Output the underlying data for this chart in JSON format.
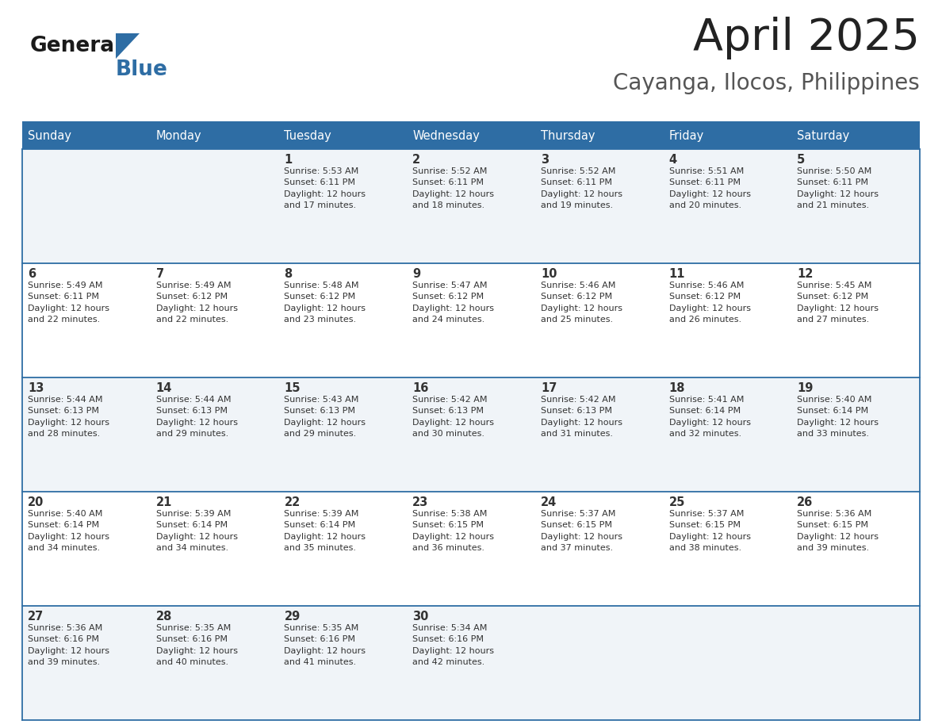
{
  "title": "April 2025",
  "subtitle": "Cayanga, Ilocos, Philippines",
  "days_of_week": [
    "Sunday",
    "Monday",
    "Tuesday",
    "Wednesday",
    "Thursday",
    "Friday",
    "Saturday"
  ],
  "header_bg": "#2E6DA4",
  "header_text": "#FFFFFF",
  "cell_bg_odd": "#F0F4F8",
  "cell_bg_even": "#FFFFFF",
  "divider_color": "#2E6DA4",
  "text_color": "#333333",
  "title_color": "#222222",
  "subtitle_color": "#555555",
  "logo_color_general": "#1a1a1a",
  "logo_color_blue": "#2E6DA4",
  "calendar": [
    [
      {
        "day": "",
        "info": ""
      },
      {
        "day": "",
        "info": ""
      },
      {
        "day": "1",
        "info": "Sunrise: 5:53 AM\nSunset: 6:11 PM\nDaylight: 12 hours\nand 17 minutes."
      },
      {
        "day": "2",
        "info": "Sunrise: 5:52 AM\nSunset: 6:11 PM\nDaylight: 12 hours\nand 18 minutes."
      },
      {
        "day": "3",
        "info": "Sunrise: 5:52 AM\nSunset: 6:11 PM\nDaylight: 12 hours\nand 19 minutes."
      },
      {
        "day": "4",
        "info": "Sunrise: 5:51 AM\nSunset: 6:11 PM\nDaylight: 12 hours\nand 20 minutes."
      },
      {
        "day": "5",
        "info": "Sunrise: 5:50 AM\nSunset: 6:11 PM\nDaylight: 12 hours\nand 21 minutes."
      }
    ],
    [
      {
        "day": "6",
        "info": "Sunrise: 5:49 AM\nSunset: 6:11 PM\nDaylight: 12 hours\nand 22 minutes."
      },
      {
        "day": "7",
        "info": "Sunrise: 5:49 AM\nSunset: 6:12 PM\nDaylight: 12 hours\nand 22 minutes."
      },
      {
        "day": "8",
        "info": "Sunrise: 5:48 AM\nSunset: 6:12 PM\nDaylight: 12 hours\nand 23 minutes."
      },
      {
        "day": "9",
        "info": "Sunrise: 5:47 AM\nSunset: 6:12 PM\nDaylight: 12 hours\nand 24 minutes."
      },
      {
        "day": "10",
        "info": "Sunrise: 5:46 AM\nSunset: 6:12 PM\nDaylight: 12 hours\nand 25 minutes."
      },
      {
        "day": "11",
        "info": "Sunrise: 5:46 AM\nSunset: 6:12 PM\nDaylight: 12 hours\nand 26 minutes."
      },
      {
        "day": "12",
        "info": "Sunrise: 5:45 AM\nSunset: 6:12 PM\nDaylight: 12 hours\nand 27 minutes."
      }
    ],
    [
      {
        "day": "13",
        "info": "Sunrise: 5:44 AM\nSunset: 6:13 PM\nDaylight: 12 hours\nand 28 minutes."
      },
      {
        "day": "14",
        "info": "Sunrise: 5:44 AM\nSunset: 6:13 PM\nDaylight: 12 hours\nand 29 minutes."
      },
      {
        "day": "15",
        "info": "Sunrise: 5:43 AM\nSunset: 6:13 PM\nDaylight: 12 hours\nand 29 minutes."
      },
      {
        "day": "16",
        "info": "Sunrise: 5:42 AM\nSunset: 6:13 PM\nDaylight: 12 hours\nand 30 minutes."
      },
      {
        "day": "17",
        "info": "Sunrise: 5:42 AM\nSunset: 6:13 PM\nDaylight: 12 hours\nand 31 minutes."
      },
      {
        "day": "18",
        "info": "Sunrise: 5:41 AM\nSunset: 6:14 PM\nDaylight: 12 hours\nand 32 minutes."
      },
      {
        "day": "19",
        "info": "Sunrise: 5:40 AM\nSunset: 6:14 PM\nDaylight: 12 hours\nand 33 minutes."
      }
    ],
    [
      {
        "day": "20",
        "info": "Sunrise: 5:40 AM\nSunset: 6:14 PM\nDaylight: 12 hours\nand 34 minutes."
      },
      {
        "day": "21",
        "info": "Sunrise: 5:39 AM\nSunset: 6:14 PM\nDaylight: 12 hours\nand 34 minutes."
      },
      {
        "day": "22",
        "info": "Sunrise: 5:39 AM\nSunset: 6:14 PM\nDaylight: 12 hours\nand 35 minutes."
      },
      {
        "day": "23",
        "info": "Sunrise: 5:38 AM\nSunset: 6:15 PM\nDaylight: 12 hours\nand 36 minutes."
      },
      {
        "day": "24",
        "info": "Sunrise: 5:37 AM\nSunset: 6:15 PM\nDaylight: 12 hours\nand 37 minutes."
      },
      {
        "day": "25",
        "info": "Sunrise: 5:37 AM\nSunset: 6:15 PM\nDaylight: 12 hours\nand 38 minutes."
      },
      {
        "day": "26",
        "info": "Sunrise: 5:36 AM\nSunset: 6:15 PM\nDaylight: 12 hours\nand 39 minutes."
      }
    ],
    [
      {
        "day": "27",
        "info": "Sunrise: 5:36 AM\nSunset: 6:16 PM\nDaylight: 12 hours\nand 39 minutes."
      },
      {
        "day": "28",
        "info": "Sunrise: 5:35 AM\nSunset: 6:16 PM\nDaylight: 12 hours\nand 40 minutes."
      },
      {
        "day": "29",
        "info": "Sunrise: 5:35 AM\nSunset: 6:16 PM\nDaylight: 12 hours\nand 41 minutes."
      },
      {
        "day": "30",
        "info": "Sunrise: 5:34 AM\nSunset: 6:16 PM\nDaylight: 12 hours\nand 42 minutes."
      },
      {
        "day": "",
        "info": ""
      },
      {
        "day": "",
        "info": ""
      },
      {
        "day": "",
        "info": ""
      }
    ]
  ]
}
